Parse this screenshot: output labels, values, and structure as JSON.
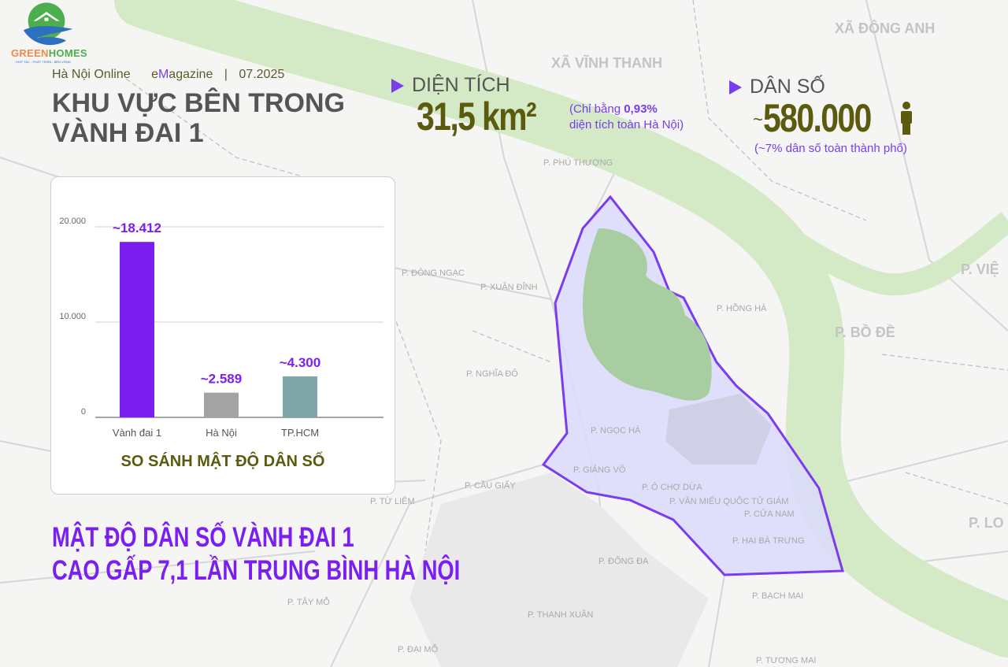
{
  "brand": {
    "logo_text_1": "GREEN",
    "logo_text_2": "HOMES",
    "logo_tagline": "HỢP TÁC - PHÁT TRIỂN - BỀN VỮNG"
  },
  "header": {
    "source": "Hà Nội Online",
    "section_prefix": "e",
    "section_accent": "M",
    "section_rest": "agazine",
    "date": "07.2025",
    "separator": "|"
  },
  "title": {
    "line1": "KHU VỰC BÊN TRONG",
    "line2": "VÀNH ĐAI 1"
  },
  "area": {
    "label": "DIỆN TÍCH",
    "value": "31,5 km²",
    "note_prefix": "(Chỉ bằng ",
    "note_pct": "0,93%",
    "note_suffix": "diện tích toàn Hà Nội)"
  },
  "population": {
    "label": "DÂN SỐ",
    "value": "580.000",
    "prefix": "~",
    "note": "(~7% dân số toàn thành phố)",
    "icon": "person-icon"
  },
  "colors": {
    "accent": "#7a1ff0",
    "olive": "#5b5a0e",
    "river": "#cfe8c0",
    "ring_fill": "#d9d6fb",
    "ring_stroke": "#7b3cf0"
  },
  "chart_data": {
    "type": "bar",
    "title": "SO SÁNH MẬT ĐỘ DÂN SỐ",
    "categories": [
      "Vành đai 1",
      "Hà Nội",
      "TP.HCM"
    ],
    "values": [
      18412,
      2589,
      4300
    ],
    "data_labels": [
      "~18.412",
      "~2.589",
      "~4.300"
    ],
    "bar_colors": [
      "#7a1ff0",
      "#a3a3a3",
      "#7fa6a8"
    ],
    "yticks": [
      0,
      10000,
      20000
    ],
    "ytick_labels": [
      "0",
      "10.000",
      "20.000"
    ],
    "ylim": [
      0,
      20000
    ],
    "grid": true
  },
  "headline": {
    "line1": "MẬT ĐỘ DÂN SỐ VÀNH ĐAI 1",
    "line2": "CAO GẤP 7,1 LẦN TRUNG BÌNH HÀ NỘI"
  },
  "map_labels": {
    "dong_anh": "XÃ ĐÔNG ANH",
    "vinh_thanh": "XÃ VĨNH THANH",
    "phu_thuong": "P. PHÚ THƯỢNG",
    "dong_ngac": "P. ĐÔNG NGẠC",
    "xuan_dinh": "P. XUÂN ĐỈNH",
    "hong_ha": "P. HỒNG HÀ",
    "bo_de": "P. BỒ ĐỀ",
    "viet_hung": "P. VIỆ",
    "nghia_do": "P. NGHĨA ĐÔ",
    "ngoc_ha": "P. NGỌC HÀ",
    "cau_giay": "P. CẦU GIẤY",
    "giang_vo": "P. GIẢNG VÕ",
    "o_cho_dua": "P. Ô CHỢ DỪA",
    "van_mieu": "P. VĂN MIẾU QUỐC TỬ GIÁM",
    "cua_nam": "P. CỬA NAM",
    "hai_ba_trung": "P. HAI BÀ TRƯNG",
    "dong_da": "P. ĐỐNG ĐA",
    "bach_mai": "P. BẠCH MAI",
    "thanh_xuan": "P. THANH XUÂN",
    "tay_mo": "P. TÂY MỖ",
    "dai_mo": "P. ĐẠI MỖ",
    "tuong_mai": "P. TƯƠNG MAI",
    "long_bien": "P. LO",
    "tu_liem": "P. TỪ LIÊM"
  }
}
